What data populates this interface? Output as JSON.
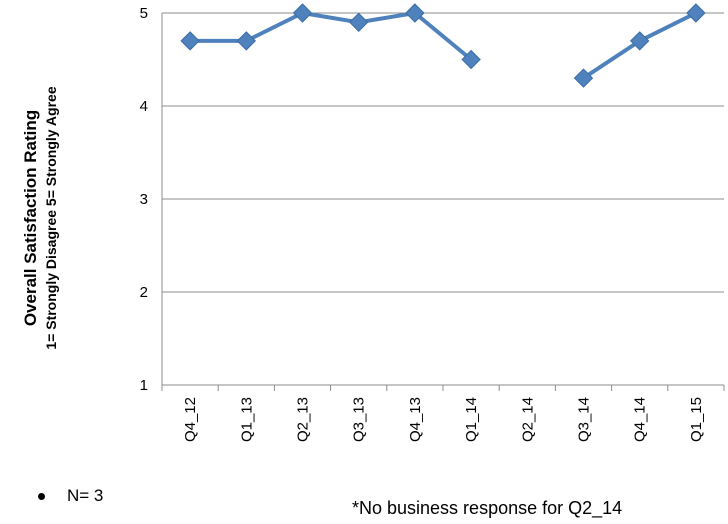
{
  "chart_data": {
    "type": "line",
    "ylabel_line1": "Overall Satisfaction Rating",
    "ylabel_line2": "1= Strongly Disagree 5= Strongly Agree",
    "ylim": [
      1,
      5
    ],
    "yticks": [
      1,
      2,
      3,
      4,
      5
    ],
    "grid": true,
    "categories": [
      "Q4_12",
      "Q1_13",
      "Q2_13",
      "Q3_13",
      "Q4_13",
      "Q1_14",
      "Q2_14",
      "Q3_14",
      "Q4_14",
      "Q1_15"
    ],
    "series": [
      {
        "values": [
          4.7,
          4.7,
          5.0,
          4.9,
          5.0,
          4.5,
          null,
          4.3,
          4.7,
          5.0
        ],
        "color": "#4F81BD"
      }
    ]
  },
  "footer": {
    "n_label": "N= 3",
    "note": "*No business response for Q2_14"
  }
}
